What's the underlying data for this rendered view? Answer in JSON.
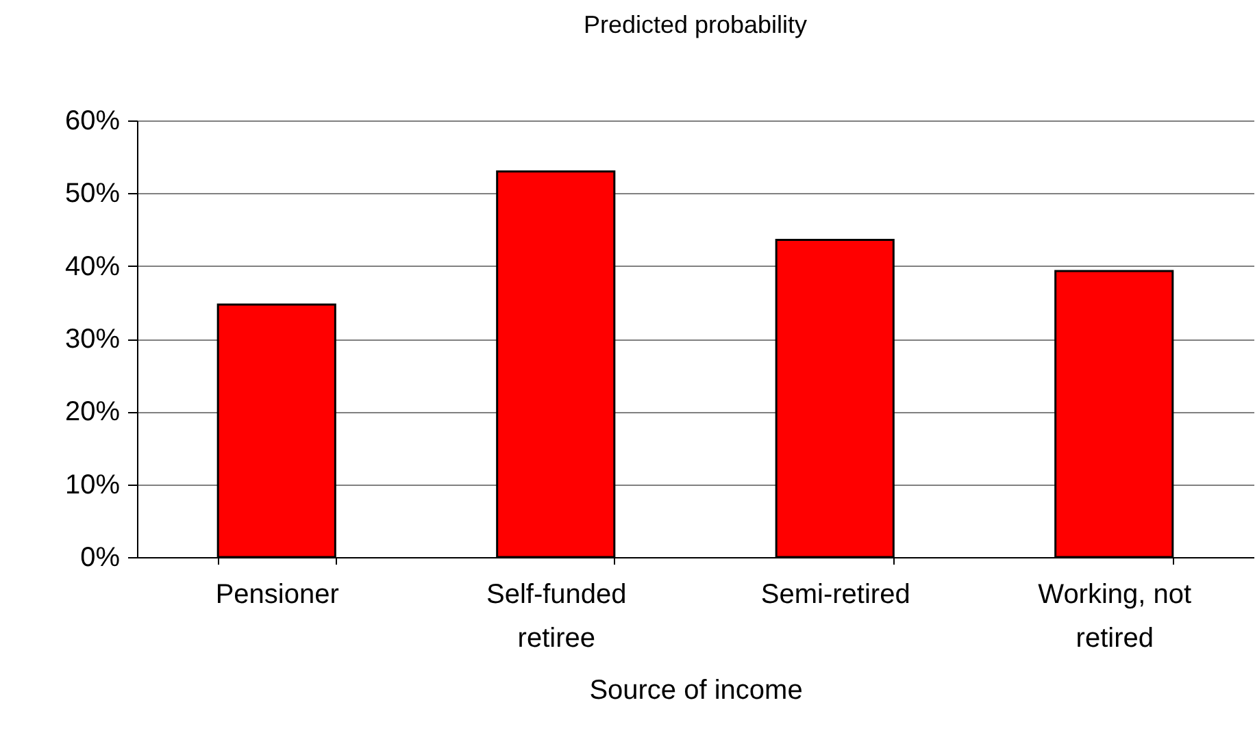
{
  "chart_data": {
    "type": "bar",
    "title": "Predicted probability",
    "xlabel": "Source of income",
    "categories": [
      "Pensioner",
      "Self-funded retiree",
      "Semi-retired",
      "Working, not retired"
    ],
    "values": [
      34.7,
      53.0,
      43.6,
      39.3
    ],
    "color": "#ff0000",
    "ylim": [
      0,
      60
    ],
    "yticks": [
      {
        "value": 0,
        "label": "0%"
      },
      {
        "value": 10,
        "label": "10%"
      },
      {
        "value": 20,
        "label": "20%"
      },
      {
        "value": 30,
        "label": "30%"
      },
      {
        "value": 40,
        "label": "40%"
      },
      {
        "value": 50,
        "label": "50%"
      },
      {
        "value": 60,
        "label": "60%"
      }
    ],
    "grid": "y"
  }
}
